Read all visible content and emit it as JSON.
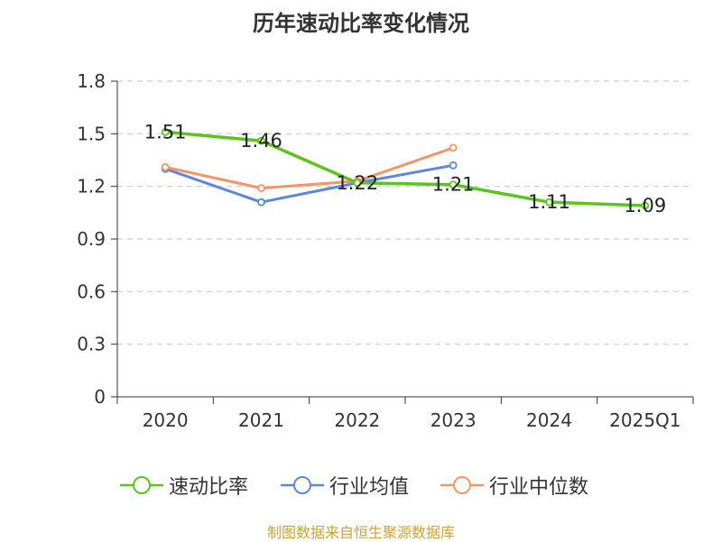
{
  "chart_data": {
    "type": "line",
    "title": "历年速动比率变化情况",
    "categories": [
      "2020",
      "2021",
      "2022",
      "2023",
      "2024",
      "2025Q1"
    ],
    "yticks": [
      "0",
      "0.3",
      "0.6",
      "0.9",
      "1.2",
      "1.5",
      "1.8"
    ],
    "ylim": [
      0,
      1.8
    ],
    "grid": true,
    "legend_position": "bottom",
    "series": [
      {
        "name": "速动比率",
        "values": [
          1.51,
          1.46,
          1.22,
          1.21,
          1.11,
          1.09
        ],
        "color": "#5cc41e",
        "labels": [
          "1.51",
          "1.46",
          "1.22",
          "1.21",
          "1.11",
          "1.09"
        ]
      },
      {
        "name": "行业均值",
        "values": [
          1.3,
          1.11,
          1.22,
          1.32,
          null,
          null
        ],
        "color": "#5b87dc"
      },
      {
        "name": "行业中位数",
        "values": [
          1.31,
          1.19,
          1.23,
          1.42,
          null,
          null
        ],
        "color": "#f59466"
      }
    ]
  },
  "footer": {
    "source": "制图数据来自恒生聚源数据库"
  }
}
